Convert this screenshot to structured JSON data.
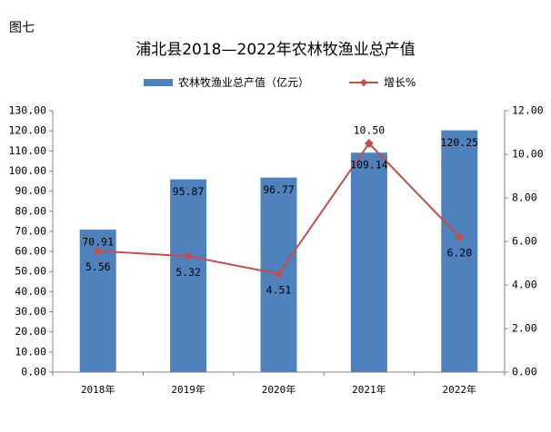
{
  "figure_label": "图七",
  "chart_data": {
    "type": "bar",
    "title": "浦北县2018—2022年农林牧渔业总产值",
    "categories": [
      "2018年",
      "2019年",
      "2020年",
      "2021年",
      "2022年"
    ],
    "series": [
      {
        "name": "农林牧渔业总产值（亿元）",
        "type": "bar",
        "axis": "left",
        "values": [
          70.91,
          95.87,
          96.77,
          109.14,
          120.25
        ],
        "labels": [
          "70.91",
          "95.87",
          "96.77",
          "109.14",
          "120.25"
        ],
        "color": "#4f81bd"
      },
      {
        "name": "增长%",
        "type": "line",
        "axis": "right",
        "values": [
          5.56,
          5.32,
          4.51,
          10.5,
          6.2
        ],
        "labels": [
          "5.56",
          "5.32",
          "4.51",
          "10.50",
          "6.20"
        ],
        "color": "#c0504d"
      }
    ],
    "ylim_left": [
      0,
      130
    ],
    "yticks_left": [
      "0.00",
      "10.00",
      "20.00",
      "30.00",
      "40.00",
      "50.00",
      "60.00",
      "70.00",
      "80.00",
      "90.00",
      "100.00",
      "110.00",
      "120.00",
      "130.00"
    ],
    "ylim_right": [
      0,
      12
    ],
    "yticks_right": [
      "0.00",
      "2.00",
      "4.00",
      "6.00",
      "8.00",
      "10.00",
      "12.00"
    ],
    "grid": false,
    "legend": "top"
  }
}
